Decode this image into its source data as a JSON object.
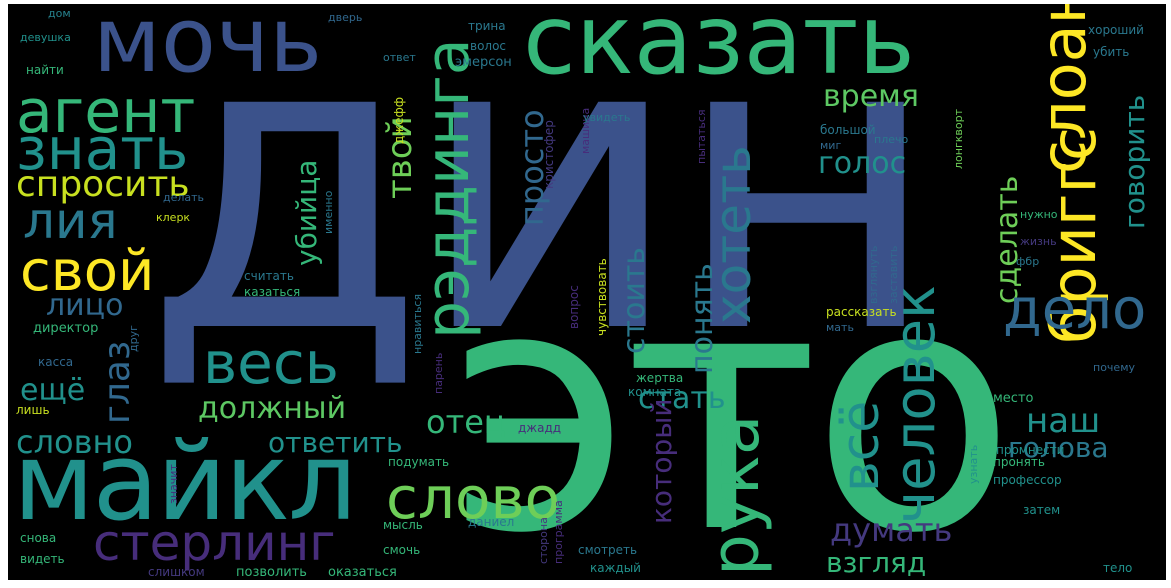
{
  "palette": {
    "background": "#000000",
    "colors": [
      "#3b528b",
      "#35b779",
      "#21918c",
      "#2a788e",
      "#31688e",
      "#44397f",
      "#472d7b",
      "#5dc863",
      "#6ece58",
      "#bddf26",
      "#c8e020",
      "#fde725",
      "#26828e"
    ]
  },
  "wordcloud": {
    "words": [
      {
        "text": "дин",
        "color": "#3b528b",
        "rot": 0
      },
      {
        "text": "это",
        "color": "#35b779",
        "rot": 0
      },
      {
        "text": "сказать",
        "color": "#35b779",
        "rot": 0
      },
      {
        "text": "мочь",
        "color": "#3b528b",
        "rot": 0
      },
      {
        "text": "майкл",
        "color": "#21918c",
        "rot": 0
      },
      {
        "text": "агент",
        "color": "#35b779",
        "rot": 0
      },
      {
        "text": "знать",
        "color": "#21918c",
        "rot": 0
      },
      {
        "text": "спросить",
        "color": "#c8e020",
        "rot": 0
      },
      {
        "text": "лия",
        "color": "#2a788e",
        "rot": 0
      },
      {
        "text": "свой",
        "color": "#fde725",
        "rot": 0
      },
      {
        "text": "лицо",
        "color": "#31688e",
        "rot": 0
      },
      {
        "text": "весь",
        "color": "#21918c",
        "rot": 0
      },
      {
        "text": "должный",
        "color": "#5dc863",
        "rot": 0
      },
      {
        "text": "ответить",
        "color": "#21918c",
        "rot": 0
      },
      {
        "text": "словно",
        "color": "#21918c",
        "rot": 0
      },
      {
        "text": "слово",
        "color": "#6ece58",
        "rot": 0
      },
      {
        "text": "стерлинг",
        "color": "#472d7b",
        "rot": 0
      },
      {
        "text": "рэддинга",
        "color": "#35b779",
        "rot": 90
      },
      {
        "text": "твой",
        "color": "#6ece58",
        "rot": 90
      },
      {
        "text": "убийца",
        "color": "#35b779",
        "rot": 90
      },
      {
        "text": "глаз",
        "color": "#31688e",
        "rot": 90
      },
      {
        "text": "ещё",
        "color": "#21918c",
        "rot": 0
      },
      {
        "text": "отец",
        "color": "#35b779",
        "rot": 0
      },
      {
        "text": "рука",
        "color": "#35b779",
        "rot": 90
      },
      {
        "text": "всё",
        "color": "#21918c",
        "rot": 90
      },
      {
        "text": "человек",
        "color": "#21918c",
        "rot": 90
      },
      {
        "text": "хотеть",
        "color": "#2a788e",
        "rot": 90
      },
      {
        "text": "просто",
        "color": "#31688e",
        "rot": 90
      },
      {
        "text": "стоить",
        "color": "#2a788e",
        "rot": 90
      },
      {
        "text": "понять",
        "color": "#2a788e",
        "rot": 90
      },
      {
        "text": "стать",
        "color": "#21918c",
        "rot": 0
      },
      {
        "text": "который",
        "color": "#472d7b",
        "rot": 90
      },
      {
        "text": "думать",
        "color": "#44397f",
        "rot": 0
      },
      {
        "text": "взгляд",
        "color": "#35b779",
        "rot": 0
      },
      {
        "text": "бриггс",
        "color": "#fde725",
        "rot": 90
      },
      {
        "text": "слоан",
        "color": "#fde725",
        "rot": 90
      },
      {
        "text": "время",
        "color": "#5dc863",
        "rot": 0
      },
      {
        "text": "голос",
        "color": "#21918c",
        "rot": 0
      },
      {
        "text": "сделать",
        "color": "#6ece58",
        "rot": 90
      },
      {
        "text": "говорить",
        "color": "#21918c",
        "rot": 90
      },
      {
        "text": "дело",
        "color": "#31688e",
        "rot": 0
      },
      {
        "text": "наш",
        "color": "#21918c",
        "rot": 0
      },
      {
        "text": "голова",
        "color": "#2a788e",
        "rot": 0
      },
      {
        "text": "хороший",
        "color": "#2a788e",
        "rot": 0
      },
      {
        "text": "убить",
        "color": "#2a788e",
        "rot": 0
      },
      {
        "text": "найти",
        "color": "#35b779",
        "rot": 0
      },
      {
        "text": "дом",
        "color": "#26828e",
        "rot": 0
      },
      {
        "text": "девушка",
        "color": "#21918c",
        "rot": 0
      },
      {
        "text": "дверь",
        "color": "#31688e",
        "rot": 0
      },
      {
        "text": "трина",
        "color": "#2a788e",
        "rot": 0
      },
      {
        "text": "волос",
        "color": "#2a788e",
        "rot": 0
      },
      {
        "text": "ответ",
        "color": "#2a788e",
        "rot": 0
      },
      {
        "text": "эмерсон",
        "color": "#2a788e",
        "rot": 0
      },
      {
        "text": "джефф",
        "color": "#c8e020",
        "rot": 90
      },
      {
        "text": "кристофер",
        "color": "#44397f",
        "rot": 90
      },
      {
        "text": "машина",
        "color": "#472d7b",
        "rot": 90
      },
      {
        "text": "большой",
        "color": "#2a788e",
        "rot": 0
      },
      {
        "text": "миг",
        "color": "#31688e",
        "rot": 0
      },
      {
        "text": "плечо",
        "color": "#2a788e",
        "rot": 0
      },
      {
        "text": "нужно",
        "color": "#35b779",
        "rot": 0
      },
      {
        "text": "жизнь",
        "color": "#44397f",
        "rot": 0
      },
      {
        "text": "фбр",
        "color": "#2a788e",
        "rot": 0
      },
      {
        "text": "клерк",
        "color": "#c8e020",
        "rot": 0
      },
      {
        "text": "делать",
        "color": "#31688e",
        "rot": 0
      },
      {
        "text": "именно",
        "color": "#2a788e",
        "rot": 90
      },
      {
        "text": "директор",
        "color": "#35b779",
        "rot": 0
      },
      {
        "text": "друг",
        "color": "#31688e",
        "rot": 90
      },
      {
        "text": "касса",
        "color": "#31688e",
        "rot": 0
      },
      {
        "text": "лишь",
        "color": "#c8e020",
        "rot": 0
      },
      {
        "text": "считать",
        "color": "#2a788e",
        "rot": 0
      },
      {
        "text": "казаться",
        "color": "#35b779",
        "rot": 0
      },
      {
        "text": "нравиться",
        "color": "#2a788e",
        "rot": 90
      },
      {
        "text": "вопрос",
        "color": "#472d7b",
        "rot": 90
      },
      {
        "text": "чувствовать",
        "color": "#c8e020",
        "rot": 90
      },
      {
        "text": "рассказать",
        "color": "#c8e020",
        "rot": 0
      },
      {
        "text": "взглянуть",
        "color": "#31688e",
        "rot": 90
      },
      {
        "text": "заставить",
        "color": "#31688e",
        "rot": 90
      },
      {
        "text": "жертва",
        "color": "#35b779",
        "rot": 0
      },
      {
        "text": "комната",
        "color": "#21918c",
        "rot": 0
      },
      {
        "text": "парень",
        "color": "#472d7b",
        "rot": 90
      },
      {
        "text": "почему",
        "color": "#31688e",
        "rot": 0
      },
      {
        "text": "место",
        "color": "#35b779",
        "rot": 0
      },
      {
        "text": "пронять",
        "color": "#35b779",
        "rot": 0
      },
      {
        "text": "промнести",
        "color": "#21918c",
        "rot": 0
      },
      {
        "text": "профессор",
        "color": "#21918c",
        "rot": 0
      },
      {
        "text": "затем",
        "color": "#21918c",
        "rot": 0
      },
      {
        "text": "тело",
        "color": "#21918c",
        "rot": 0
      },
      {
        "text": "подумать",
        "color": "#35b779",
        "rot": 0
      },
      {
        "text": "сторона",
        "color": "#44397f",
        "rot": 90
      },
      {
        "text": "программа",
        "color": "#472d7b",
        "rot": 90
      },
      {
        "text": "мысль",
        "color": "#35b779",
        "rot": 0
      },
      {
        "text": "даниел",
        "color": "#2a788e",
        "rot": 0
      },
      {
        "text": "смочь",
        "color": "#35b779",
        "rot": 0
      },
      {
        "text": "смотреть",
        "color": "#2a788e",
        "rot": 0
      },
      {
        "text": "снова",
        "color": "#35b779",
        "rot": 0
      },
      {
        "text": "видеть",
        "color": "#35b779",
        "rot": 0
      },
      {
        "text": "слишком",
        "color": "#44397f",
        "rot": 0
      },
      {
        "text": "позволить",
        "color": "#35b779",
        "rot": 0
      },
      {
        "text": "оказаться",
        "color": "#35b779",
        "rot": 0
      },
      {
        "text": "каждый",
        "color": "#21918c",
        "rot": 0
      },
      {
        "text": "значит",
        "color": "#472d7b",
        "rot": 90
      },
      {
        "text": "мать",
        "color": "#31688e",
        "rot": 0
      },
      {
        "text": "узнать",
        "color": "#21918c",
        "rot": 90
      },
      {
        "text": "лонгкворт",
        "color": "#6ece58",
        "rot": 90
      },
      {
        "text": "увидеть",
        "color": "#2a788e",
        "rot": 0
      },
      {
        "text": "пытаться",
        "color": "#472d7b",
        "rot": 90
      },
      {
        "text": "джадд",
        "color": "#472d7b",
        "rot": 0
      }
    ]
  }
}
